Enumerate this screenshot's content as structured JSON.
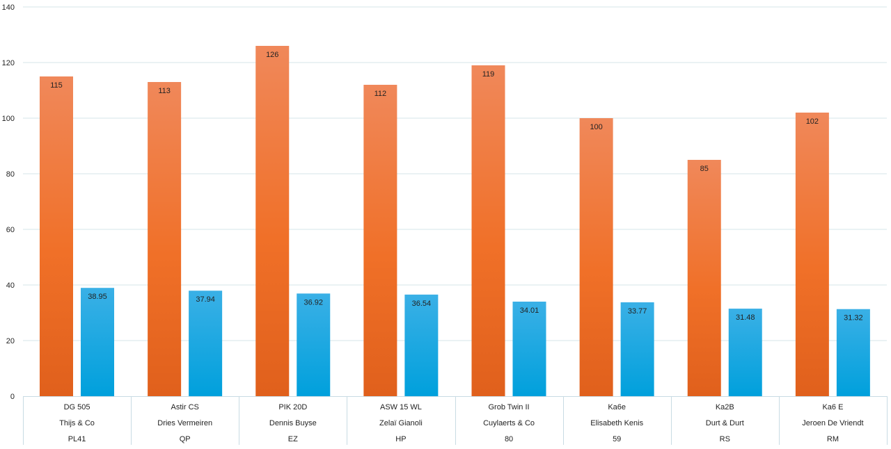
{
  "chart_data": {
    "type": "bar",
    "ylim": [
      0,
      140
    ],
    "yticks": [
      0,
      20,
      40,
      60,
      80,
      100,
      120,
      140
    ],
    "grid": true,
    "categories": [
      [
        "DG 505",
        "Thijs & Co",
        "PL41"
      ],
      [
        "Astir CS",
        "Dries Vermeiren",
        "QP"
      ],
      [
        "PIK 20D",
        "Dennis Buyse",
        "EZ"
      ],
      [
        "ASW 15 WL",
        "Zelaï Gianoli",
        "HP"
      ],
      [
        "Grob Twin II",
        "Cuylaerts & Co",
        "80"
      ],
      [
        "Ka6e",
        "Elisabeth Kenis",
        "59"
      ],
      [
        "Ka2B",
        "Durt & Durt",
        "RS"
      ],
      [
        "Ka6 E",
        "Jeroen De Vriendt",
        "RM"
      ]
    ],
    "series": [
      {
        "values": [
          115,
          113,
          126,
          112,
          119,
          100,
          85,
          102
        ],
        "color_top": "#f0885a",
        "color_mid": "#f07028",
        "color_bottom": "#e0601c"
      },
      {
        "values": [
          38.95,
          37.94,
          36.92,
          36.54,
          34.01,
          33.77,
          31.48,
          31.32
        ],
        "color_top": "#3ab0e6",
        "color_bottom": "#00a0dc"
      }
    ],
    "data_labels": [
      [
        "115",
        "113",
        "126",
        "112",
        "119",
        "100",
        "85",
        "102"
      ],
      [
        "38.95",
        "37.94",
        "36.92",
        "36.54",
        "34.01",
        "33.77",
        "31.48",
        "31.32"
      ]
    ]
  }
}
